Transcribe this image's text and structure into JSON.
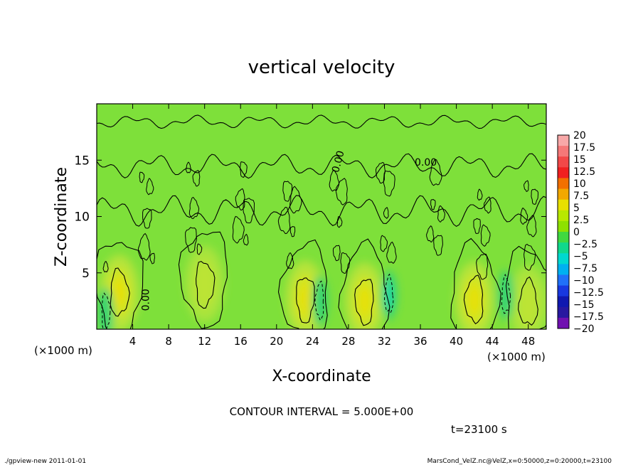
{
  "chart_data": {
    "type": "heatmap",
    "title": "vertical velocity",
    "xlabel": "X-coordinate",
    "ylabel": "Z-coordinate",
    "x_unit": "(×1000 m)",
    "y_unit": "(×1000 m)",
    "xlim": [
      0,
      50
    ],
    "ylim": [
      0,
      20
    ],
    "x_ticks": [
      "4",
      "8",
      "12",
      "16",
      "20",
      "24",
      "28",
      "32",
      "36",
      "40",
      "44",
      "48"
    ],
    "x_tick_values": [
      4,
      8,
      12,
      16,
      20,
      24,
      28,
      32,
      36,
      40,
      44,
      48
    ],
    "y_ticks": [
      "5",
      "10",
      "15"
    ],
    "y_tick_values": [
      5,
      10,
      15
    ],
    "contour_labels": [
      "0.00",
      "0.00",
      "0.00"
    ],
    "colorbar": {
      "levels": [
        "20",
        "17.5",
        "15",
        "12.5",
        "10",
        "7.5",
        "5",
        "2.5",
        "0",
        "−2.5",
        "−5",
        "−7.5",
        "−10",
        "−12.5",
        "−15",
        "−17.5",
        "−20"
      ],
      "colors": [
        "#f8a8a8",
        "#f57878",
        "#f24848",
        "#f02020",
        "#f27000",
        "#f2a800",
        "#e8e000",
        "#b8e800",
        "#8ee000",
        "#40d840",
        "#10d88c",
        "#00d8d0",
        "#00b0f0",
        "#2070f8",
        "#1838e0",
        "#1018b0",
        "#2818a0",
        "#7010b0"
      ]
    },
    "updrafts": [
      {
        "x": 2.5,
        "z": 3.2,
        "peak": 5
      },
      {
        "x": 12.0,
        "z": 4.0,
        "peak": 3
      },
      {
        "x": 23.2,
        "z": 2.7,
        "peak": 5
      },
      {
        "x": 29.8,
        "z": 2.5,
        "peak": 5
      },
      {
        "x": 42.0,
        "z": 2.6,
        "peak": 5
      },
      {
        "x": 48.0,
        "z": 2.3,
        "peak": 3
      }
    ],
    "downdrafts": [
      {
        "x": 24.8,
        "z": 2.5,
        "peak": -3
      },
      {
        "x": 32.5,
        "z": 3.0,
        "peak": -5
      },
      {
        "x": 45.5,
        "z": 3.0,
        "peak": -3
      },
      {
        "x": 1.0,
        "z": 1.5,
        "peak": -2.5
      }
    ],
    "annotation_contour_interval": "CONTOUR INTERVAL = 5.000E+00",
    "annotation_time": "t=23100 s"
  },
  "footer": {
    "left": "./gpview-new  2011-01-01",
    "right": "MarsCond_VelZ.nc@VelZ,x=0:50000,z=0:20000,t=23100"
  }
}
